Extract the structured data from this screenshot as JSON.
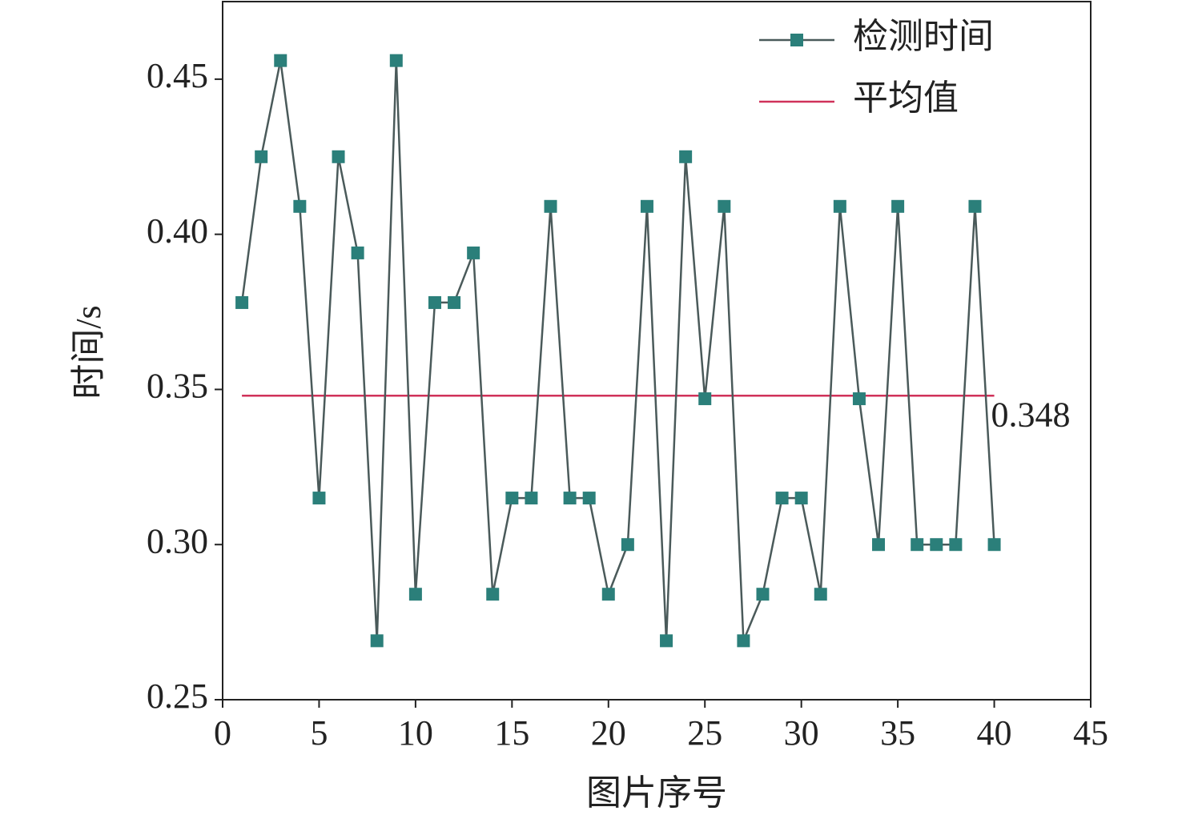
{
  "chart_data": {
    "type": "line",
    "x_label": "图片序号",
    "y_label": "时间/s",
    "x": [
      1,
      2,
      3,
      4,
      5,
      6,
      7,
      8,
      9,
      10,
      11,
      12,
      13,
      14,
      15,
      16,
      17,
      18,
      19,
      20,
      21,
      22,
      23,
      24,
      25,
      26,
      27,
      28,
      29,
      30,
      31,
      32,
      33,
      34,
      35,
      36,
      37,
      38,
      39,
      40
    ],
    "series": [
      {
        "name": "检测时间",
        "color": "#2b7f7a",
        "line_color": "#4a5a5a",
        "values": [
          0.378,
          0.425,
          0.456,
          0.409,
          0.315,
          0.425,
          0.394,
          0.269,
          0.456,
          0.284,
          0.378,
          0.378,
          0.394,
          0.284,
          0.315,
          0.315,
          0.409,
          0.315,
          0.315,
          0.284,
          0.3,
          0.409,
          0.269,
          0.425,
          0.347,
          0.409,
          0.269,
          0.284,
          0.315,
          0.315,
          0.284,
          0.409,
          0.347,
          0.3,
          0.409,
          0.3,
          0.3,
          0.3,
          0.409,
          0.3
        ]
      }
    ],
    "reference_line": {
      "name": "平均值",
      "color": "#d0325a",
      "value": 0.348
    },
    "xlim": [
      0,
      45
    ],
    "xticks": [
      0,
      5,
      10,
      15,
      20,
      25,
      30,
      35,
      40,
      45
    ],
    "ylim": [
      0.25,
      0.475
    ],
    "yticks": [
      0.25,
      {
        "value": 0.3,
        "label": "0.30"
      },
      0.35,
      {
        "value": 0.4,
        "label": "0.40"
      },
      0.45
    ],
    "legend": "upper right"
  }
}
